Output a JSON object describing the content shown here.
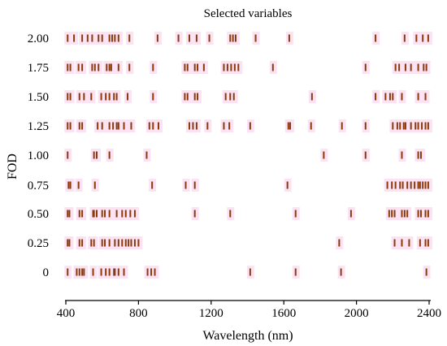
{
  "chart_data": {
    "type": "scatter",
    "title": "Selected variables",
    "xlabel": "Wavelength (nm)",
    "ylabel": "FOD",
    "xlim": [
      400,
      2400
    ],
    "xticks": [
      "400",
      "800",
      "1200",
      "1600",
      "2000",
      "2400"
    ],
    "xtick_values": [
      400,
      800,
      1200,
      1600,
      2000,
      2400
    ],
    "categories": [
      "0",
      "0.25",
      "0.50",
      "0.75",
      "1.00",
      "1.25",
      "1.50",
      "1.75",
      "2.00"
    ],
    "grid": false,
    "marker_color": "#8b3a0e",
    "band_color": "#fbe3f3",
    "series": [
      {
        "category": "0",
        "wavelengths": [
          410,
          460,
          475,
          490,
          500,
          550,
          595,
          620,
          640,
          665,
          670,
          690,
          720,
          850,
          870,
          890,
          1415,
          1665,
          1915,
          2385
        ]
      },
      {
        "category": "0.25",
        "wavelengths": [
          410,
          420,
          475,
          490,
          540,
          555,
          600,
          615,
          640,
          670,
          690,
          710,
          730,
          745,
          760,
          780,
          800,
          1905,
          2210,
          2250,
          2290,
          2350,
          2380,
          2395
        ]
      },
      {
        "category": "0.50",
        "wavelengths": [
          410,
          420,
          475,
          490,
          550,
          555,
          570,
          600,
          615,
          640,
          680,
          710,
          730,
          755,
          780,
          1110,
          1305,
          1665,
          1970,
          2180,
          2195,
          2210,
          2250,
          2265,
          2280,
          2340,
          2355,
          2380,
          2395
        ]
      },
      {
        "category": "0.75",
        "wavelengths": [
          415,
          425,
          470,
          560,
          875,
          1060,
          1110,
          1620,
          2170,
          2195,
          2215,
          2240,
          2255,
          2280,
          2300,
          2320,
          2340,
          2350,
          2365,
          2380,
          2395
        ]
      },
      {
        "category": "1.00",
        "wavelengths": [
          410,
          555,
          570,
          640,
          845,
          1820,
          2050,
          2250,
          2340,
          2355
        ]
      },
      {
        "category": "1.25",
        "wavelengths": [
          410,
          425,
          475,
          490,
          575,
          600,
          640,
          660,
          680,
          690,
          720,
          760,
          860,
          880,
          910,
          1080,
          1100,
          1120,
          1180,
          1270,
          1300,
          1415,
          1625,
          1635,
          1750,
          1920,
          2050,
          2200,
          2225,
          2240,
          2260,
          2270,
          2300,
          2325,
          2340,
          2360,
          2380,
          2395
        ]
      },
      {
        "category": "1.50",
        "wavelengths": [
          410,
          425,
          475,
          500,
          540,
          595,
          620,
          640,
          665,
          680,
          740,
          880,
          1055,
          1070,
          1110,
          1125,
          1280,
          1305,
          1325,
          1755,
          2105,
          2160,
          2185,
          2200,
          2250,
          2340,
          2380
        ]
      },
      {
        "category": "1.75",
        "wavelengths": [
          410,
          425,
          470,
          490,
          545,
          560,
          580,
          625,
          640,
          650,
          690,
          750,
          880,
          1055,
          1070,
          1110,
          1125,
          1160,
          1270,
          1290,
          1310,
          1330,
          1350,
          1540,
          2050,
          2215,
          2235,
          2270,
          2300,
          2340,
          2370,
          2385
        ]
      },
      {
        "category": "2.00",
        "wavelengths": [
          410,
          445,
          490,
          520,
          545,
          580,
          600,
          640,
          655,
          670,
          690,
          750,
          905,
          1020,
          1080,
          1120,
          1190,
          1305,
          1320,
          1335,
          1445,
          1630,
          2105,
          2265,
          2330,
          2365,
          2395
        ]
      }
    ]
  }
}
